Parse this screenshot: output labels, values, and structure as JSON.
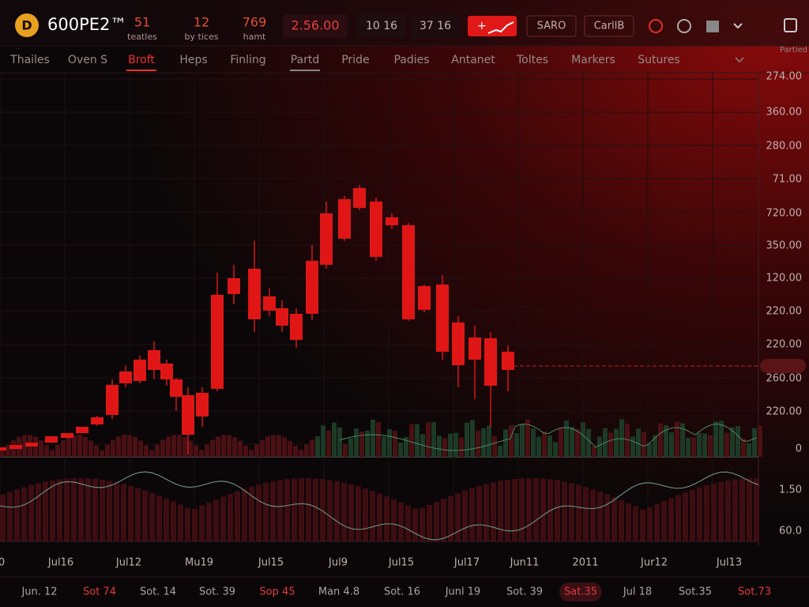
{
  "header": {
    "logo": "600PE2™",
    "stats": [
      {
        "value": "51",
        "label": "teatles"
      },
      {
        "value": "12",
        "label": "by tices"
      },
      {
        "value": "769",
        "label": "hamt"
      }
    ],
    "price": "2.56.00",
    "fields": [
      "10 16",
      "37 16"
    ],
    "buttons": [
      "SARO",
      "CarllB"
    ],
    "corner": "Partied"
  },
  "nav": [
    "Thailes",
    "Oven S",
    "Broft",
    "Heps",
    "Finling",
    "Partd",
    "Pride",
    "Padies",
    "Antanet",
    "Toltes",
    "Markers",
    "Sutures"
  ],
  "price_axis": [
    "274.00",
    "360.00",
    "280.00",
    "71.00",
    "720.00",
    "350.00",
    "120.00",
    "220.00",
    "220.00",
    "260.00",
    "220.00",
    "0",
    "1.50",
    "60.0"
  ],
  "date_axis": [
    "0",
    "Jul16",
    "Jul12",
    "Mu19",
    "Jul15",
    "Jul9",
    "Jul15",
    "Jul17",
    "Jun11",
    "2011",
    "Jur12",
    "Jul13"
  ],
  "bottom_tabs": [
    "Jun. 12",
    "Sot 74",
    "Sot. 14",
    "Sot. 39",
    "Sop 45",
    "Man 4.8",
    "Sot. 16",
    "Junl 19",
    "Sot. 39",
    "Sat.35",
    "Jul 18",
    "Sot.35",
    "Sot.73"
  ]
}
